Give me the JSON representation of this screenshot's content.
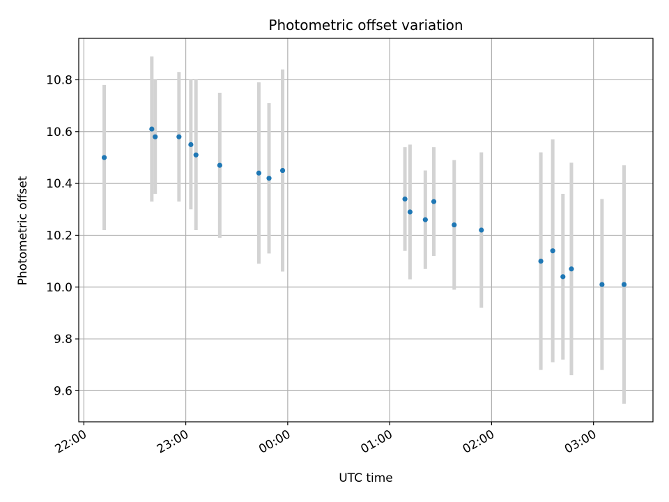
{
  "chart_data": {
    "type": "scatter",
    "title": "Photometric offset variation",
    "xlabel": "UTC time",
    "ylabel": "Photometric offset",
    "grid": true,
    "xlim": [
      "21:57",
      "03:35"
    ],
    "ylim": [
      9.48,
      10.96
    ],
    "x_ticks": [
      "22:00",
      "23:00",
      "00:00",
      "01:00",
      "02:00",
      "03:00"
    ],
    "y_ticks": [
      "9.6",
      "9.8",
      "10.0",
      "10.2",
      "10.4",
      "10.6",
      "10.8"
    ],
    "colors": {
      "point": "#1f77b4",
      "errorbar": "#d3d3d3",
      "grid": "#b0b0b0"
    },
    "series": [
      {
        "x": [
          "22:12",
          "22:40",
          "22:42",
          "22:56",
          "23:03",
          "23:06",
          "23:20",
          "23:43",
          "23:49",
          "23:57",
          "01:09",
          "01:12",
          "01:21",
          "01:26",
          "01:38",
          "01:54",
          "02:29",
          "02:36",
          "02:42",
          "02:47",
          "03:05",
          "03:18"
        ],
        "y": [
          10.5,
          10.61,
          10.58,
          10.58,
          10.55,
          10.51,
          10.47,
          10.44,
          10.42,
          10.45,
          10.34,
          10.29,
          10.26,
          10.33,
          10.24,
          10.22,
          10.1,
          10.14,
          10.04,
          10.07,
          10.01,
          10.01
        ],
        "yerr": [
          0.28,
          0.28,
          0.22,
          0.25,
          0.25,
          0.29,
          0.28,
          0.35,
          0.29,
          0.39,
          0.2,
          0.26,
          0.19,
          0.21,
          0.25,
          0.3,
          0.42,
          0.43,
          0.32,
          0.41,
          0.33,
          0.46
        ]
      }
    ]
  }
}
